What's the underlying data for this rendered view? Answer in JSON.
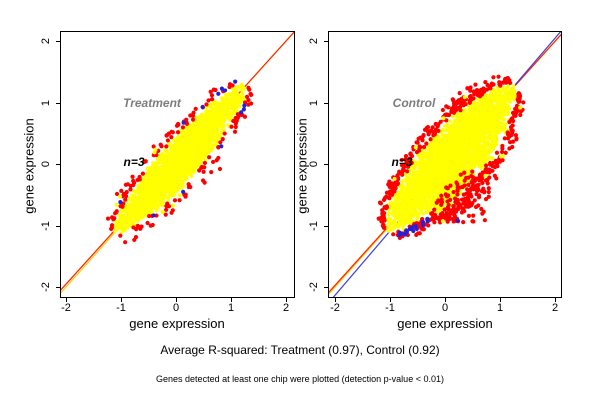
{
  "figure": {
    "background": "#ffffff",
    "captions": {
      "avg_r_squared": "Average R-squared: Treatment (0.97), Control (0.92)",
      "note": "Genes detected at least one chip were plotted (detection p-value < 0.01)"
    }
  },
  "chart_data": {
    "type": "scatter",
    "layout_hint": "two side-by-side square scatter panels, full axis box, no grid, no legend; yellow dense gene cloud along diagonal with red/blue outlier points; identity and pairwise fit lines",
    "panels": [
      {
        "title": "Treatment",
        "annotation": "n=3",
        "xlabel": "gene expression",
        "ylabel": "gene expression",
        "xlim": [
          -2.1,
          2.2
        ],
        "ylim": [
          -2.2,
          2.2
        ],
        "xticks": [
          -2,
          -1,
          0,
          1,
          2
        ],
        "yticks": [
          -2,
          -1,
          0,
          1,
          2
        ],
        "r_squared": 0.97,
        "lines": [
          {
            "name": "identity-line",
            "color": "#ffcc00",
            "slope": 1.0,
            "intercept": 0.0
          },
          {
            "name": "pairwise-fit-line",
            "color": "#ff2200",
            "slope": 0.988,
            "intercept": 0.022
          }
        ],
        "cloud": {
          "seed": 42,
          "center": 0.08,
          "half_length": 1.22,
          "max_half_width": 0.34,
          "taper": 0.55,
          "lower_bulge": {
            "range": [
              -0.6,
              0.45
            ],
            "factor": 1.12
          },
          "n_core": 3200,
          "core_color": "#ffff00",
          "core_radius": 1.7,
          "n_outlier": 150,
          "outlier_color": "#ff0000",
          "outlier_radius": 2.1,
          "n_rare": 13,
          "rare_color": "#2222dd",
          "n_stray": 7,
          "red_cluster": null,
          "blue_cluster": null,
          "lone_points": []
        }
      },
      {
        "title": "Control",
        "annotation": "n=3",
        "xlabel": "gene expression",
        "ylabel": "gene expression",
        "xlim": [
          -2.1,
          2.2
        ],
        "ylim": [
          -2.2,
          2.2
        ],
        "xticks": [
          -2,
          -1,
          0,
          1,
          2
        ],
        "yticks": [
          -2,
          -1,
          0,
          1,
          2
        ],
        "r_squared": 0.92,
        "lines": [
          {
            "name": "identity-line",
            "color": "#ffcc00",
            "slope": 1.0,
            "intercept": 0.0
          },
          {
            "name": "pairwise-fit-line",
            "color": "#ff2200",
            "slope": 0.992,
            "intercept": 0.01
          },
          {
            "name": "pairwise-fit-line-2",
            "color": "#3b3bee",
            "slope": 1.045,
            "intercept": -0.045
          }
        ],
        "cloud": {
          "seed": 1337,
          "center": 0.1,
          "half_length": 1.18,
          "max_half_width": 0.5,
          "taper": 0.6,
          "lower_bulge": {
            "range": [
              -0.5,
              0.9
            ],
            "factor": 1.2
          },
          "n_core": 3800,
          "core_color": "#ffff00",
          "core_radius": 1.7,
          "n_outlier": 420,
          "outlier_color": "#ff0000",
          "outlier_radius": 2.1,
          "n_rare": 0,
          "rare_color": "#2222dd",
          "n_stray": 9,
          "red_cluster": {
            "n": 70,
            "x": [
              -0.2,
              0.8
            ],
            "y": [
              -0.95,
              -0.12
            ],
            "min_below_diag": 0.4
          },
          "blue_cluster": {
            "n": 18,
            "u": [
              -1.02,
              -0.58
            ],
            "offset": [
              0.015,
              0.09
            ]
          },
          "lone_points": [
            {
              "x": 0.23,
              "y": -0.92,
              "color": "#2222dd"
            }
          ]
        }
      }
    ]
  }
}
